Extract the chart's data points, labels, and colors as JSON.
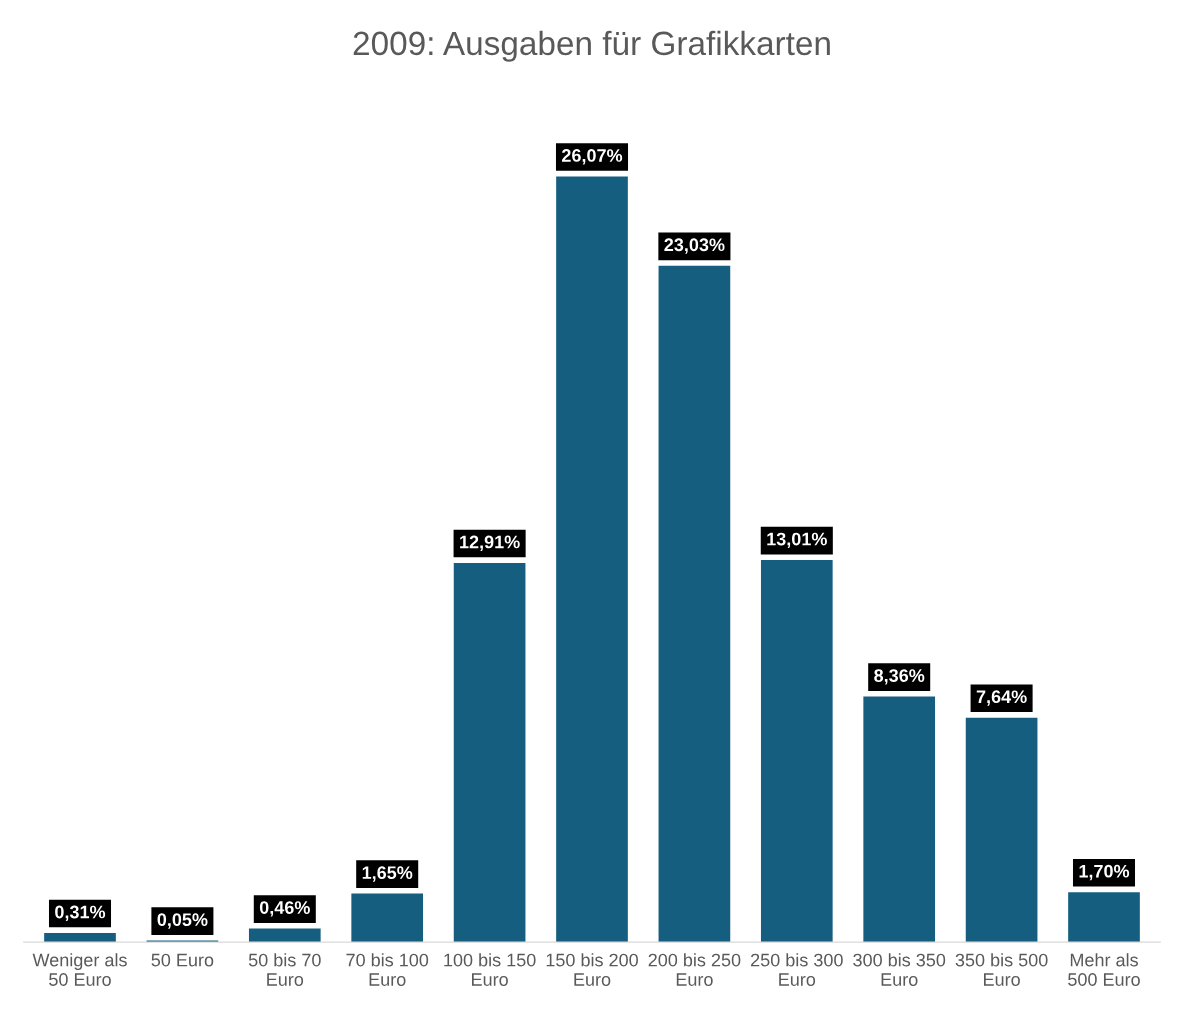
{
  "chart_data": {
    "type": "bar",
    "title": "2009: Ausgaben für Grafikkarten",
    "categories": [
      "Weniger als 50 Euro",
      "50 Euro",
      "50 bis 70 Euro",
      "70 bis 100 Euro",
      "100 bis 150 Euro",
      "150 bis 200 Euro",
      "200 bis 250 Euro",
      "250 bis 300 Euro",
      "300 bis 350 Euro",
      "350 bis 500 Euro",
      "Mehr als 500 Euro"
    ],
    "values": [
      0.31,
      0.05,
      0.46,
      1.65,
      12.91,
      26.07,
      23.03,
      13.01,
      8.36,
      7.64,
      1.7
    ],
    "value_labels": [
      "0,31%",
      "0,05%",
      "0,46%",
      "1,65%",
      "12,91%",
      "26,07%",
      "23,03%",
      "13,01%",
      "8,36%",
      "7,64%",
      "1,70%"
    ],
    "color": "#155e80",
    "grid": false,
    "legend": false
  }
}
